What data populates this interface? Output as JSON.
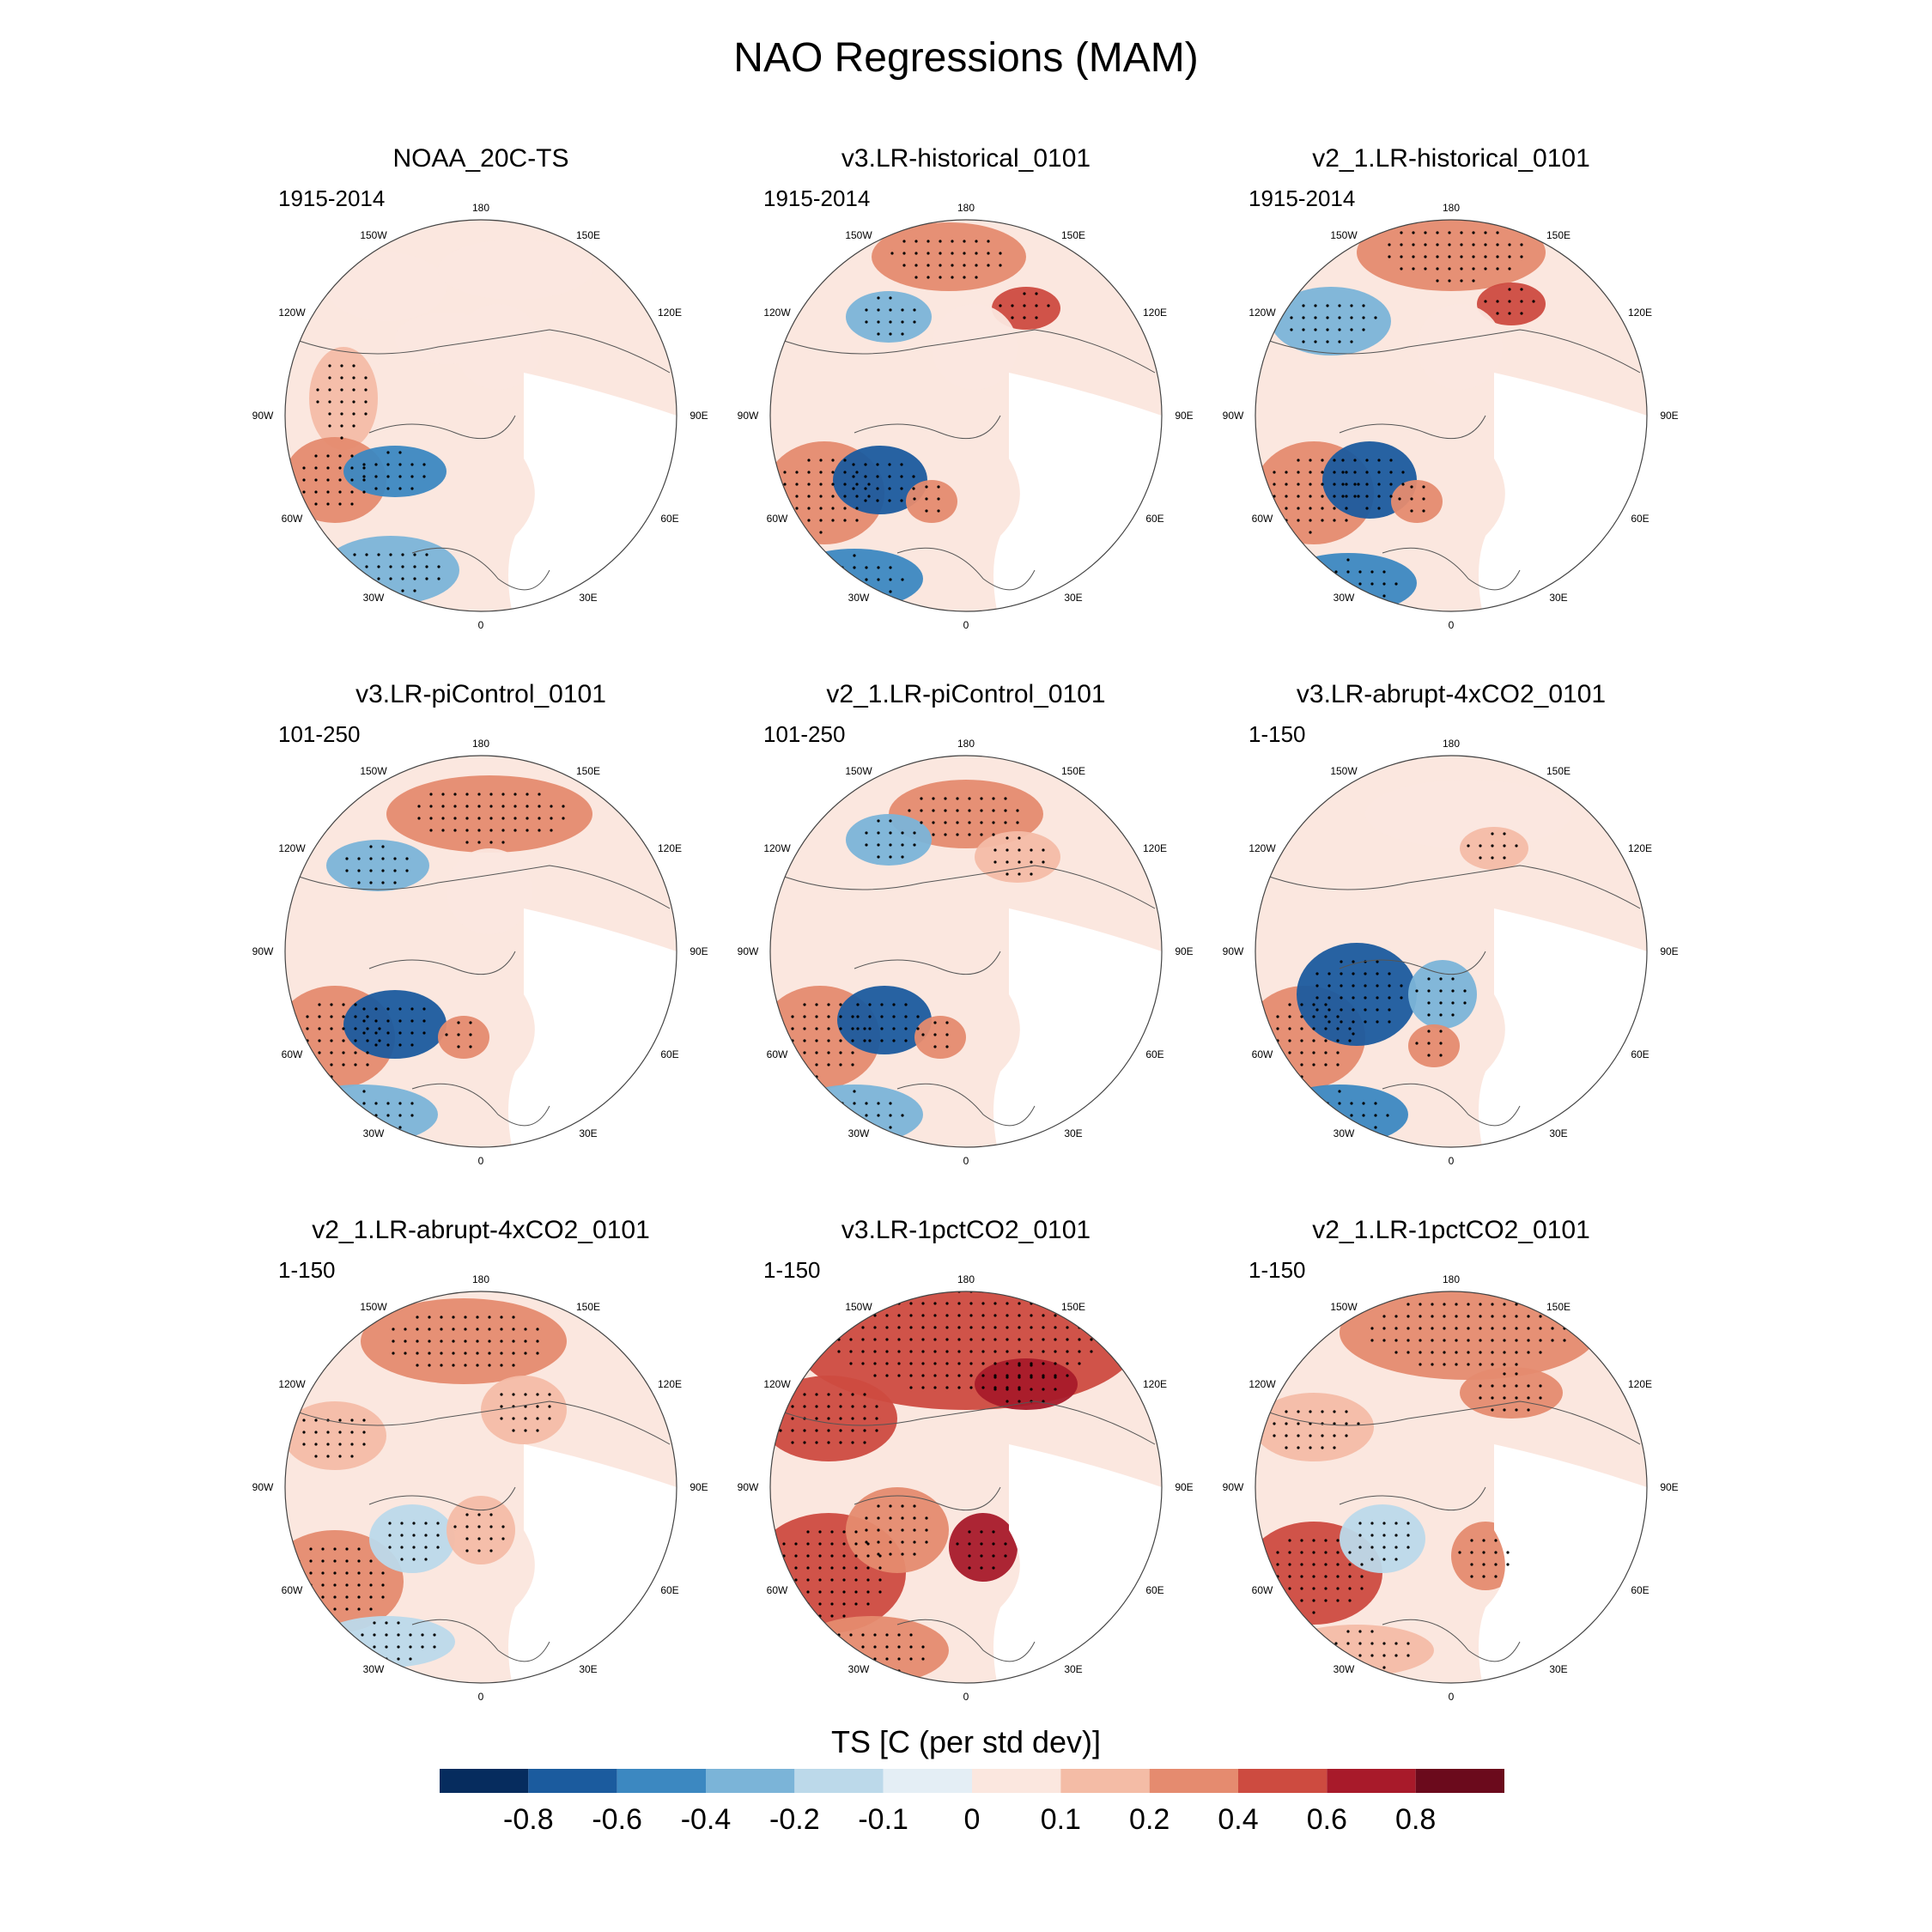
{
  "title": "NAO Regressions (MAM)",
  "longitude_labels": {
    "top": "180",
    "p150w": "150W",
    "p150e": "150E",
    "p120w": "120W",
    "p120e": "120E",
    "p90w": "90W",
    "p90e": "90E",
    "p60w": "60W",
    "p60e": "60E",
    "p30w": "30W",
    "p30e": "30E",
    "bottom": "0"
  },
  "panels": [
    {
      "title": "NOAA_20C-TS",
      "period": "1915-2014"
    },
    {
      "title": "v3.LR-historical_0101",
      "period": "1915-2014"
    },
    {
      "title": "v2_1.LR-historical_0101",
      "period": "1915-2014"
    },
    {
      "title": "v3.LR-piControl_0101",
      "period": "101-250"
    },
    {
      "title": "v2_1.LR-piControl_0101",
      "period": "101-250"
    },
    {
      "title": "v3.LR-abrupt-4xCO2_0101",
      "period": "1-150"
    },
    {
      "title": "v2_1.LR-abrupt-4xCO2_0101",
      "period": "1-150"
    },
    {
      "title": "v3.LR-1pctCO2_0101",
      "period": "1-150"
    },
    {
      "title": "v2_1.LR-1pctCO2_0101",
      "period": "1-150"
    }
  ],
  "colorbar": {
    "title": "TS [C (per std dev)]",
    "labels": [
      "-0.8",
      "-0.6",
      "-0.4",
      "-0.2",
      "-0.1",
      "0",
      "0.1",
      "0.2",
      "0.4",
      "0.6",
      "0.8"
    ],
    "colors": [
      "#062c5e",
      "#1b5b9e",
      "#3c88c1",
      "#7bb4d8",
      "#bcd9ea",
      "#e4eef5",
      "#fbe7df",
      "#f4bca6",
      "#e58b6f",
      "#cd4b40",
      "#a81a2a",
      "#6b0a1c"
    ]
  }
}
